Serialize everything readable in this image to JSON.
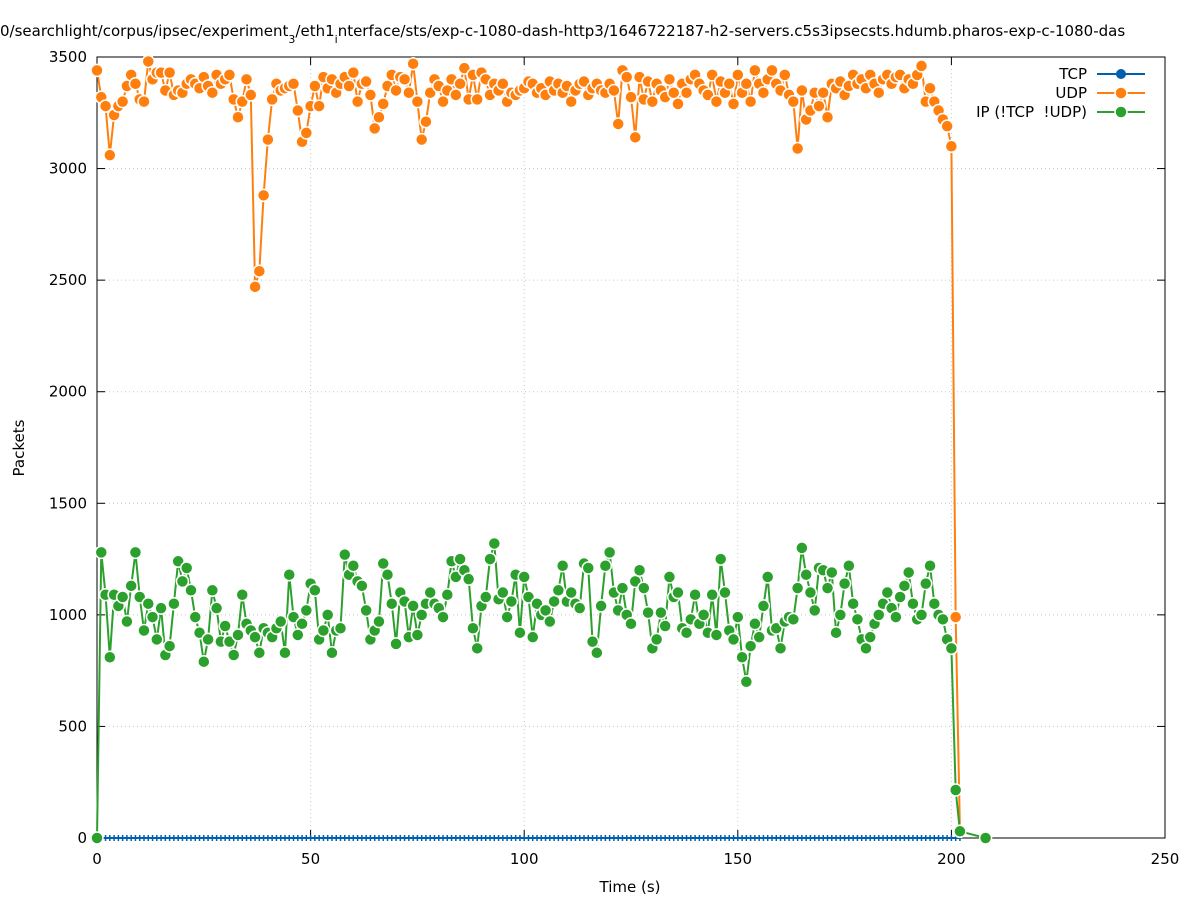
{
  "chart_data": {
    "type": "line",
    "title_segments": [
      {
        "text": "0/searchlight/corpus/ipsec/experiment",
        "subscript": false
      },
      {
        "text": "3",
        "subscript": true
      },
      {
        "text": "/eth1",
        "subscript": false
      },
      {
        "text": "i",
        "subscript": true
      },
      {
        "text": "nterface/sts/exp-c-1080-dash-http3/1646722187-h2-servers.c5s3ipsecsts.hdumb.pharos-exp-c-1080-das",
        "subscript": false
      }
    ],
    "x_label": "Time (s)",
    "y_label": "Packets",
    "xlim": [
      0,
      250
    ],
    "ylim": [
      0,
      3500
    ],
    "xticks": [
      0,
      50,
      100,
      150,
      200,
      250
    ],
    "yticks": [
      0,
      500,
      1000,
      1500,
      2000,
      2500,
      3000,
      3500
    ],
    "grid": true,
    "legend": "top-right",
    "x": [
      0,
      1,
      2,
      3,
      4,
      5,
      6,
      7,
      8,
      9,
      10,
      11,
      12,
      13,
      14,
      15,
      16,
      17,
      18,
      19,
      20,
      21,
      22,
      23,
      24,
      25,
      26,
      27,
      28,
      29,
      30,
      31,
      32,
      33,
      34,
      35,
      36,
      37,
      38,
      39,
      40,
      41,
      42,
      43,
      44,
      45,
      46,
      47,
      48,
      49,
      50,
      51,
      52,
      53,
      54,
      55,
      56,
      57,
      58,
      59,
      60,
      61,
      62,
      63,
      64,
      65,
      66,
      67,
      68,
      69,
      70,
      71,
      72,
      73,
      74,
      75,
      76,
      77,
      78,
      79,
      80,
      81,
      82,
      83,
      84,
      85,
      86,
      87,
      88,
      89,
      90,
      91,
      92,
      93,
      94,
      95,
      96,
      97,
      98,
      99,
      100,
      101,
      102,
      103,
      104,
      105,
      106,
      107,
      108,
      109,
      110,
      111,
      112,
      113,
      114,
      115,
      116,
      117,
      118,
      119,
      120,
      121,
      122,
      123,
      124,
      125,
      126,
      127,
      128,
      129,
      130,
      131,
      132,
      133,
      134,
      135,
      136,
      137,
      138,
      139,
      140,
      141,
      142,
      143,
      144,
      145,
      146,
      147,
      148,
      149,
      150,
      151,
      152,
      153,
      154,
      155,
      156,
      157,
      158,
      159,
      160,
      161,
      162,
      163,
      164,
      165,
      166,
      167,
      168,
      169,
      170,
      171,
      172,
      173,
      174,
      175,
      176,
      177,
      178,
      179,
      180,
      181,
      182,
      183,
      184,
      185,
      186,
      187,
      188,
      189,
      190,
      191,
      192,
      193,
      194,
      195,
      196,
      197,
      198,
      199,
      200,
      201,
      202,
      208
    ],
    "series": [
      {
        "name": "TCP",
        "color": "#0060ad",
        "marker": "tick",
        "values": [
          0,
          0,
          0,
          0,
          0,
          0,
          0,
          0,
          0,
          0,
          0,
          0,
          0,
          0,
          0,
          0,
          0,
          0,
          0,
          0,
          0,
          0,
          0,
          0,
          0,
          0,
          0,
          0,
          0,
          0,
          0,
          0,
          0,
          0,
          0,
          0,
          0,
          0,
          0,
          0,
          0,
          0,
          0,
          0,
          0,
          0,
          0,
          0,
          0,
          0,
          0,
          0,
          0,
          0,
          0,
          0,
          0,
          0,
          0,
          0,
          0,
          0,
          0,
          0,
          0,
          0,
          0,
          0,
          0,
          0,
          0,
          0,
          0,
          0,
          0,
          0,
          0,
          0,
          0,
          0,
          0,
          0,
          0,
          0,
          0,
          0,
          0,
          0,
          0,
          0,
          0,
          0,
          0,
          0,
          0,
          0,
          0,
          0,
          0,
          0,
          0,
          0,
          0,
          0,
          0,
          0,
          0,
          0,
          0,
          0,
          0,
          0,
          0,
          0,
          0,
          0,
          0,
          0,
          0,
          0,
          0,
          0,
          0,
          0,
          0,
          0,
          0,
          0,
          0,
          0,
          0,
          0,
          0,
          0,
          0,
          0,
          0,
          0,
          0,
          0,
          0,
          0,
          0,
          0,
          0,
          0,
          0,
          0,
          0,
          0,
          0,
          0,
          0,
          0,
          0,
          0,
          0,
          0,
          0,
          0,
          0,
          0,
          0,
          0,
          0,
          0,
          0,
          0,
          0,
          0,
          0,
          0,
          0,
          0,
          0,
          0,
          0,
          0,
          0,
          0,
          0,
          0,
          0,
          0,
          0,
          0,
          0,
          0,
          0,
          0,
          0,
          0,
          0,
          0,
          0,
          0,
          0,
          0,
          0,
          0,
          0,
          0,
          0,
          null
        ]
      },
      {
        "name": "UDP",
        "color": "#ff7f0e",
        "marker": "circle",
        "values": [
          3440,
          3320,
          3280,
          3060,
          3240,
          3280,
          3300,
          3370,
          3420,
          3380,
          3310,
          3300,
          3480,
          3400,
          3430,
          3430,
          3350,
          3430,
          3330,
          3350,
          3340,
          3380,
          3400,
          3380,
          3360,
          3410,
          3370,
          3340,
          3420,
          3380,
          3400,
          3420,
          3310,
          3230,
          3300,
          3400,
          3330,
          2470,
          2540,
          2880,
          3130,
          3310,
          3380,
          3350,
          3360,
          3370,
          3380,
          3260,
          3120,
          3160,
          3280,
          3370,
          3280,
          3410,
          3360,
          3400,
          3340,
          3380,
          3410,
          3370,
          3430,
          3300,
          3380,
          3390,
          3330,
          3180,
          3230,
          3290,
          3370,
          3420,
          3350,
          3410,
          3400,
          3340,
          3470,
          3300,
          3130,
          3210,
          3340,
          3400,
          3370,
          3300,
          3350,
          3400,
          3330,
          3380,
          3450,
          3310,
          3420,
          3310,
          3430,
          3400,
          3330,
          3380,
          3350,
          3380,
          3300,
          3340,
          3330,
          3350,
          3360,
          3390,
          3380,
          3340,
          3360,
          3330,
          3390,
          3350,
          3380,
          3340,
          3370,
          3300,
          3350,
          3380,
          3390,
          3330,
          3360,
          3380,
          3350,
          3340,
          3380,
          3350,
          3200,
          3440,
          3410,
          3320,
          3140,
          3410,
          3310,
          3390,
          3300,
          3380,
          3350,
          3320,
          3400,
          3340,
          3290,
          3380,
          3340,
          3400,
          3420,
          3380,
          3350,
          3330,
          3420,
          3300,
          3390,
          3340,
          3380,
          3290,
          3420,
          3340,
          3380,
          3300,
          3440,
          3380,
          3340,
          3400,
          3440,
          3380,
          3350,
          3420,
          3330,
          3300,
          3090,
          3350,
          3220,
          3260,
          3340,
          3280,
          3340,
          3230,
          3380,
          3360,
          3390,
          3330,
          3370,
          3420,
          3380,
          3400,
          3360,
          3420,
          3380,
          3340,
          3400,
          3420,
          3380,
          3410,
          3420,
          3360,
          3400,
          3380,
          3420,
          3460,
          3300,
          3360,
          3300,
          3260,
          3220,
          3190,
          3100,
          990,
          30,
          null
        ]
      },
      {
        "name": "IP (!TCP  !UDP)",
        "color": "#2ca02c",
        "marker": "circle",
        "values": [
          0,
          1280,
          1090,
          810,
          1090,
          1040,
          1080,
          970,
          1130,
          1280,
          1080,
          930,
          1050,
          990,
          890,
          1030,
          820,
          860,
          1050,
          1240,
          1150,
          1210,
          1110,
          990,
          920,
          790,
          890,
          1110,
          1030,
          880,
          950,
          880,
          820,
          910,
          1090,
          960,
          930,
          900,
          830,
          940,
          920,
          900,
          940,
          970,
          830,
          1180,
          990,
          910,
          960,
          1020,
          1140,
          1110,
          890,
          930,
          1000,
          830,
          930,
          940,
          1270,
          1180,
          1220,
          1150,
          1130,
          1020,
          890,
          930,
          970,
          1230,
          1180,
          1050,
          870,
          1100,
          1060,
          900,
          1040,
          910,
          1000,
          1050,
          1100,
          1050,
          1030,
          990,
          1090,
          1240,
          1170,
          1250,
          1200,
          1160,
          940,
          850,
          1040,
          1080,
          1250,
          1320,
          1070,
          1100,
          990,
          1060,
          1180,
          920,
          1170,
          1080,
          900,
          1050,
          1000,
          1020,
          970,
          1060,
          1110,
          1220,
          1060,
          1100,
          1050,
          1030,
          1230,
          1210,
          880,
          830,
          1040,
          1220,
          1280,
          1100,
          1020,
          1120,
          1000,
          960,
          1150,
          1200,
          1120,
          1010,
          850,
          890,
          1010,
          950,
          1170,
          1080,
          1100,
          940,
          920,
          980,
          1090,
          960,
          1000,
          920,
          1090,
          910,
          1250,
          1100,
          930,
          890,
          990,
          810,
          700,
          860,
          960,
          900,
          1040,
          1170,
          930,
          940,
          850,
          970,
          990,
          980,
          1120,
          1300,
          1180,
          1100,
          1020,
          1210,
          1200,
          1120,
          1190,
          920,
          1000,
          1140,
          1220,
          1050,
          980,
          890,
          850,
          900,
          960,
          1000,
          1050,
          1100,
          1030,
          990,
          1080,
          1130,
          1190,
          1050,
          980,
          1000,
          1140,
          1220,
          1050,
          1000,
          980,
          890,
          850,
          215,
          30,
          0
        ]
      }
    ]
  }
}
